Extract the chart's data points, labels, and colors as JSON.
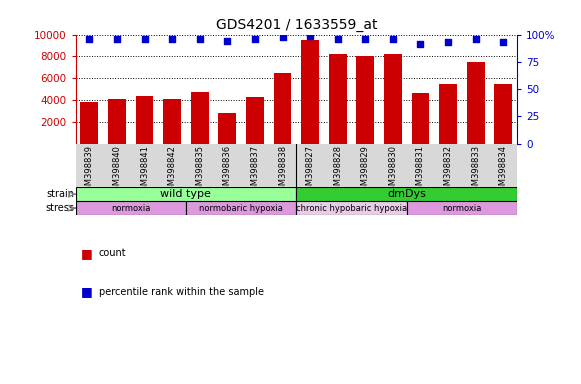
{
  "title": "GDS4201 / 1633559_at",
  "samples": [
    "GSM398839",
    "GSM398840",
    "GSM398841",
    "GSM398842",
    "GSM398835",
    "GSM398836",
    "GSM398837",
    "GSM398838",
    "GSM398827",
    "GSM398828",
    "GSM398829",
    "GSM398830",
    "GSM398831",
    "GSM398832",
    "GSM398833",
    "GSM398834"
  ],
  "counts": [
    3800,
    4100,
    4350,
    4100,
    4700,
    2850,
    4300,
    6500,
    9500,
    8200,
    8050,
    8250,
    4650,
    5450,
    7450,
    5500
  ],
  "percentile_ranks": [
    96,
    96,
    96,
    96,
    96,
    94,
    96,
    98,
    99,
    96,
    96,
    96,
    91,
    93,
    96,
    93
  ],
  "bar_color": "#cc0000",
  "dot_color": "#0000cc",
  "ylim_left": [
    0,
    10000
  ],
  "ylim_right": [
    0,
    100
  ],
  "yticks_left": [
    2000,
    4000,
    6000,
    8000,
    10000
  ],
  "yticks_right": [
    0,
    25,
    50,
    75,
    100
  ],
  "strain_groups": [
    {
      "label": "wild type",
      "start": 0,
      "end": 8,
      "color": "#99ff99"
    },
    {
      "label": "dmDys",
      "start": 8,
      "end": 16,
      "color": "#33cc33"
    }
  ],
  "stress_groups": [
    {
      "label": "normoxia",
      "start": 0,
      "end": 4,
      "color": "#dd99dd"
    },
    {
      "label": "normobaric hypoxia",
      "start": 4,
      "end": 8,
      "color": "#dd99dd"
    },
    {
      "label": "chronic hypobaric hypoxia",
      "start": 8,
      "end": 12,
      "color": "#e8cce8"
    },
    {
      "label": "normoxia",
      "start": 12,
      "end": 16,
      "color": "#dd99dd"
    }
  ],
  "grid_color": "#000000",
  "left_axis_color": "#cc0000",
  "right_axis_color": "#0000cc",
  "label_bg_color": "#d8d8d8",
  "fig_width": 5.81,
  "fig_height": 3.84,
  "dpi": 100
}
